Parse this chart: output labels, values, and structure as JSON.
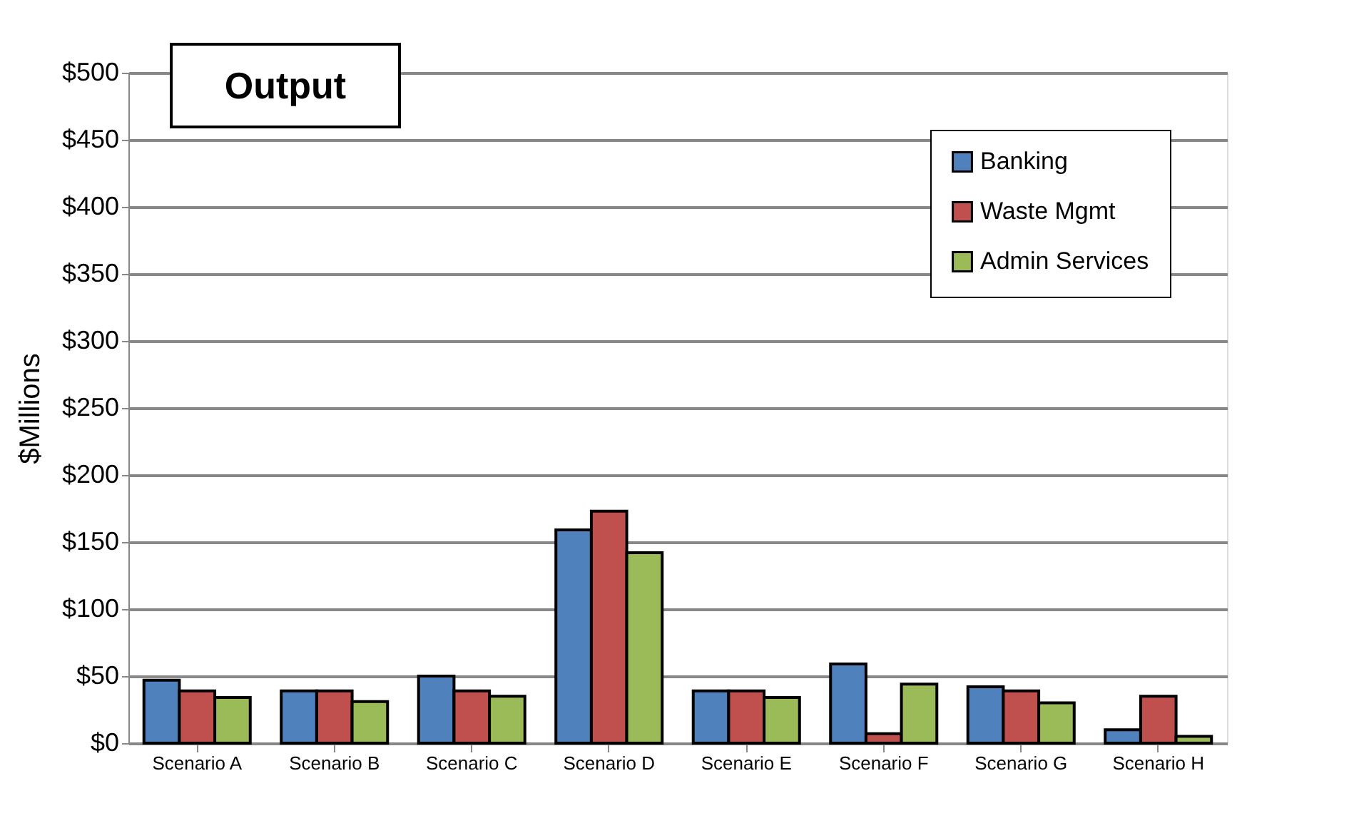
{
  "chart_data": {
    "type": "bar",
    "title": "Output",
    "ylabel": "$Millions",
    "categories": [
      "Scenario A",
      "Scenario B",
      "Scenario C",
      "Scenario D",
      "Scenario E",
      "Scenario F",
      "Scenario G",
      "Scenario H"
    ],
    "series": [
      {
        "name": "Banking",
        "color": "#4f81bd",
        "values": [
          47,
          39,
          50,
          159,
          39,
          59,
          42,
          10
        ]
      },
      {
        "name": "Waste Mgmt",
        "color": "#c0504d",
        "values": [
          39,
          39,
          39,
          173,
          39,
          7,
          39,
          35
        ]
      },
      {
        "name": "Admin Services",
        "color": "#9bbb59",
        "values": [
          34,
          31,
          35,
          142,
          34,
          44,
          30,
          5
        ]
      }
    ],
    "ylim": [
      0,
      500
    ],
    "yticks": [
      {
        "value": 0,
        "label": "$0"
      },
      {
        "value": 50,
        "label": "$50"
      },
      {
        "value": 100,
        "label": "$100"
      },
      {
        "value": 150,
        "label": "$150"
      },
      {
        "value": 200,
        "label": "$200"
      },
      {
        "value": 250,
        "label": "$250"
      },
      {
        "value": 300,
        "label": "$300"
      },
      {
        "value": 350,
        "label": "$350"
      },
      {
        "value": 400,
        "label": "$400"
      },
      {
        "value": 450,
        "label": "$450"
      },
      {
        "value": 500,
        "label": "$500"
      }
    ],
    "grid": "y",
    "legend": "top right"
  }
}
